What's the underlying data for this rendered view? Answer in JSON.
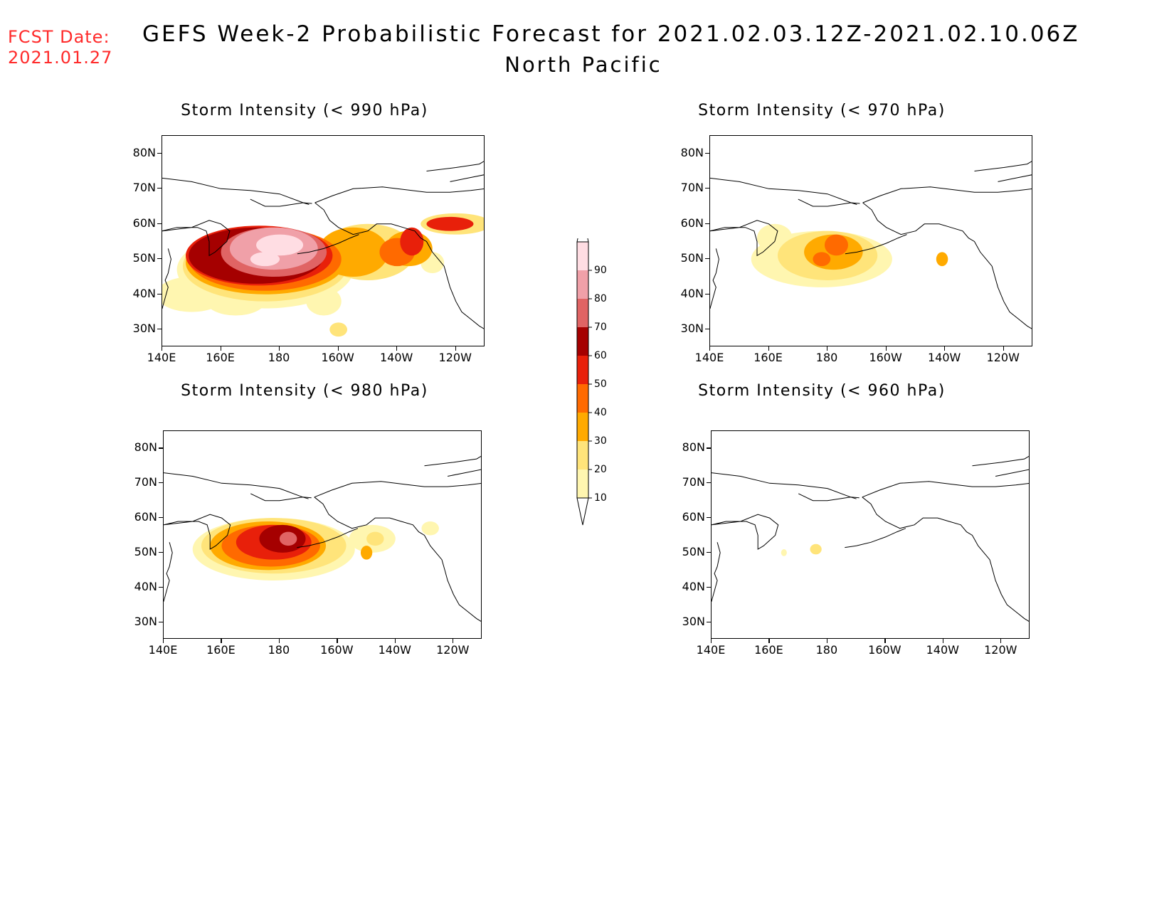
{
  "header": {
    "fcst_label": "FCST Date:",
    "fcst_date": "2021.01.27",
    "title": "GEFS Week-2 Probabilistic Forecast for 2021.02.03.12Z-2021.02.10.06Z",
    "subtitle": "North Pacific"
  },
  "colors": {
    "c10": "#fff6b0",
    "c20": "#ffe47a",
    "c30": "#ffaa00",
    "c40": "#ff6a00",
    "c50": "#e8200a",
    "c60": "#a50000",
    "c70": "#e06464",
    "c80": "#f0a0a8",
    "c90": "#ffdde3"
  },
  "axes": {
    "lat_labels": [
      "80N",
      "70N",
      "60N",
      "50N",
      "40N",
      "30N"
    ],
    "lon_labels": [
      "140E",
      "160E",
      "180",
      "160W",
      "140W",
      "120W"
    ]
  },
  "colorbar": {
    "levels": [
      "10",
      "20",
      "30",
      "40",
      "50",
      "60",
      "70",
      "80",
      "90"
    ]
  },
  "panels": [
    {
      "id": "p990",
      "title": "Storm Intensity (< 990 hPa)"
    },
    {
      "id": "p970",
      "title": "Storm Intensity (< 970 hPa)"
    },
    {
      "id": "p980",
      "title": "Storm Intensity (< 980 hPa)"
    },
    {
      "id": "p960",
      "title": "Storm Intensity (< 960 hPa)"
    }
  ]
}
